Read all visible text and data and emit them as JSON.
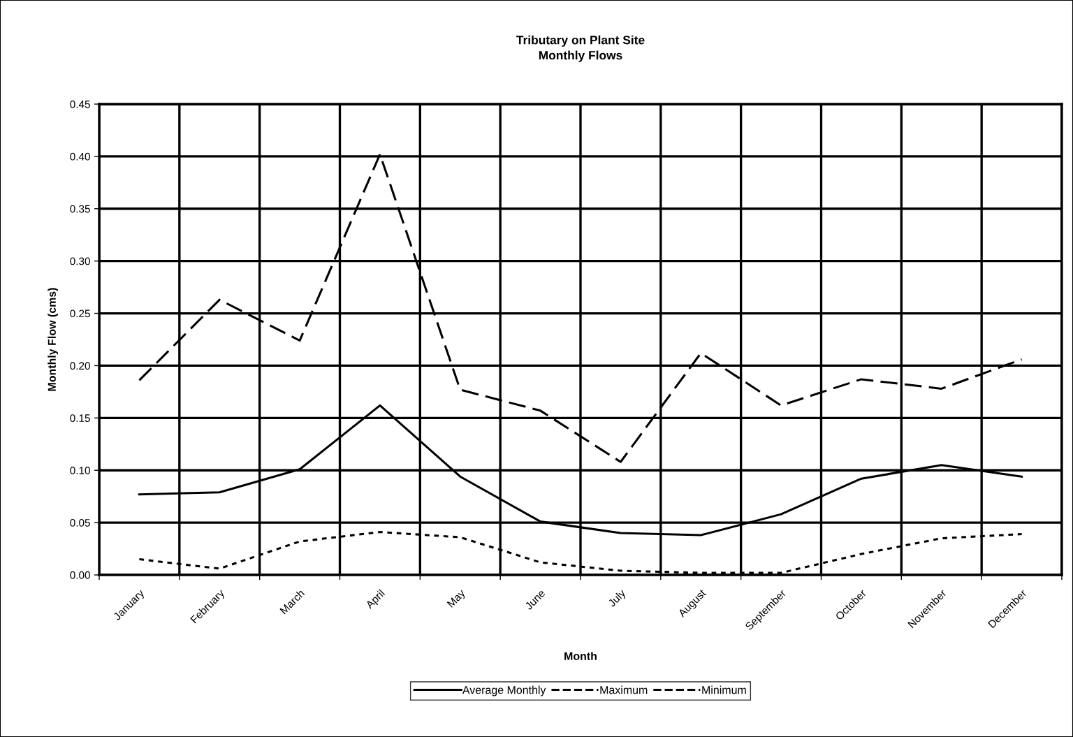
{
  "chart_data": {
    "type": "line",
    "title": "Tributary on Plant Site\nMonthly Flows",
    "xlabel": "Month",
    "ylabel": "Monthly Flow (cms)",
    "categories": [
      "January",
      "February",
      "March",
      "April",
      "May",
      "June",
      "July",
      "August",
      "September",
      "October",
      "November",
      "December"
    ],
    "series": [
      {
        "name": "Average Monthly",
        "color": "#000000",
        "line_style": "solid",
        "values": [
          0.077,
          0.079,
          0.101,
          0.162,
          0.094,
          0.051,
          0.04,
          0.038,
          0.058,
          0.092,
          0.105,
          0.094
        ]
      },
      {
        "name": "Maximum",
        "color": "#000000",
        "line_style": "dashed",
        "values": [
          0.186,
          0.263,
          0.224,
          0.402,
          0.177,
          0.157,
          0.108,
          0.212,
          0.162,
          0.187,
          0.178,
          0.206
        ]
      },
      {
        "name": "Minimum",
        "color": "#000000",
        "line_style": "dotted",
        "values": [
          0.015,
          0.006,
          0.032,
          0.041,
          0.036,
          0.012,
          0.004,
          0.002,
          0.002,
          0.02,
          0.035,
          0.039
        ]
      }
    ],
    "ylim": [
      0,
      0.45
    ],
    "yticks": [
      {
        "value": 0,
        "label": "0.00"
      },
      {
        "value": 0.05,
        "label": "0.05"
      },
      {
        "value": 0.1,
        "label": "0.10"
      },
      {
        "value": 0.15,
        "label": "0.15"
      },
      {
        "value": 0.2,
        "label": "0.20"
      },
      {
        "value": 0.25,
        "label": "0.25"
      },
      {
        "value": 0.3,
        "label": "0.30"
      },
      {
        "value": 0.35,
        "label": "0.35"
      },
      {
        "value": 0.4,
        "label": "0.40"
      },
      {
        "value": 0.45,
        "label": "0.45"
      }
    ],
    "grid": true,
    "legend": "bottom",
    "marker": "none"
  }
}
